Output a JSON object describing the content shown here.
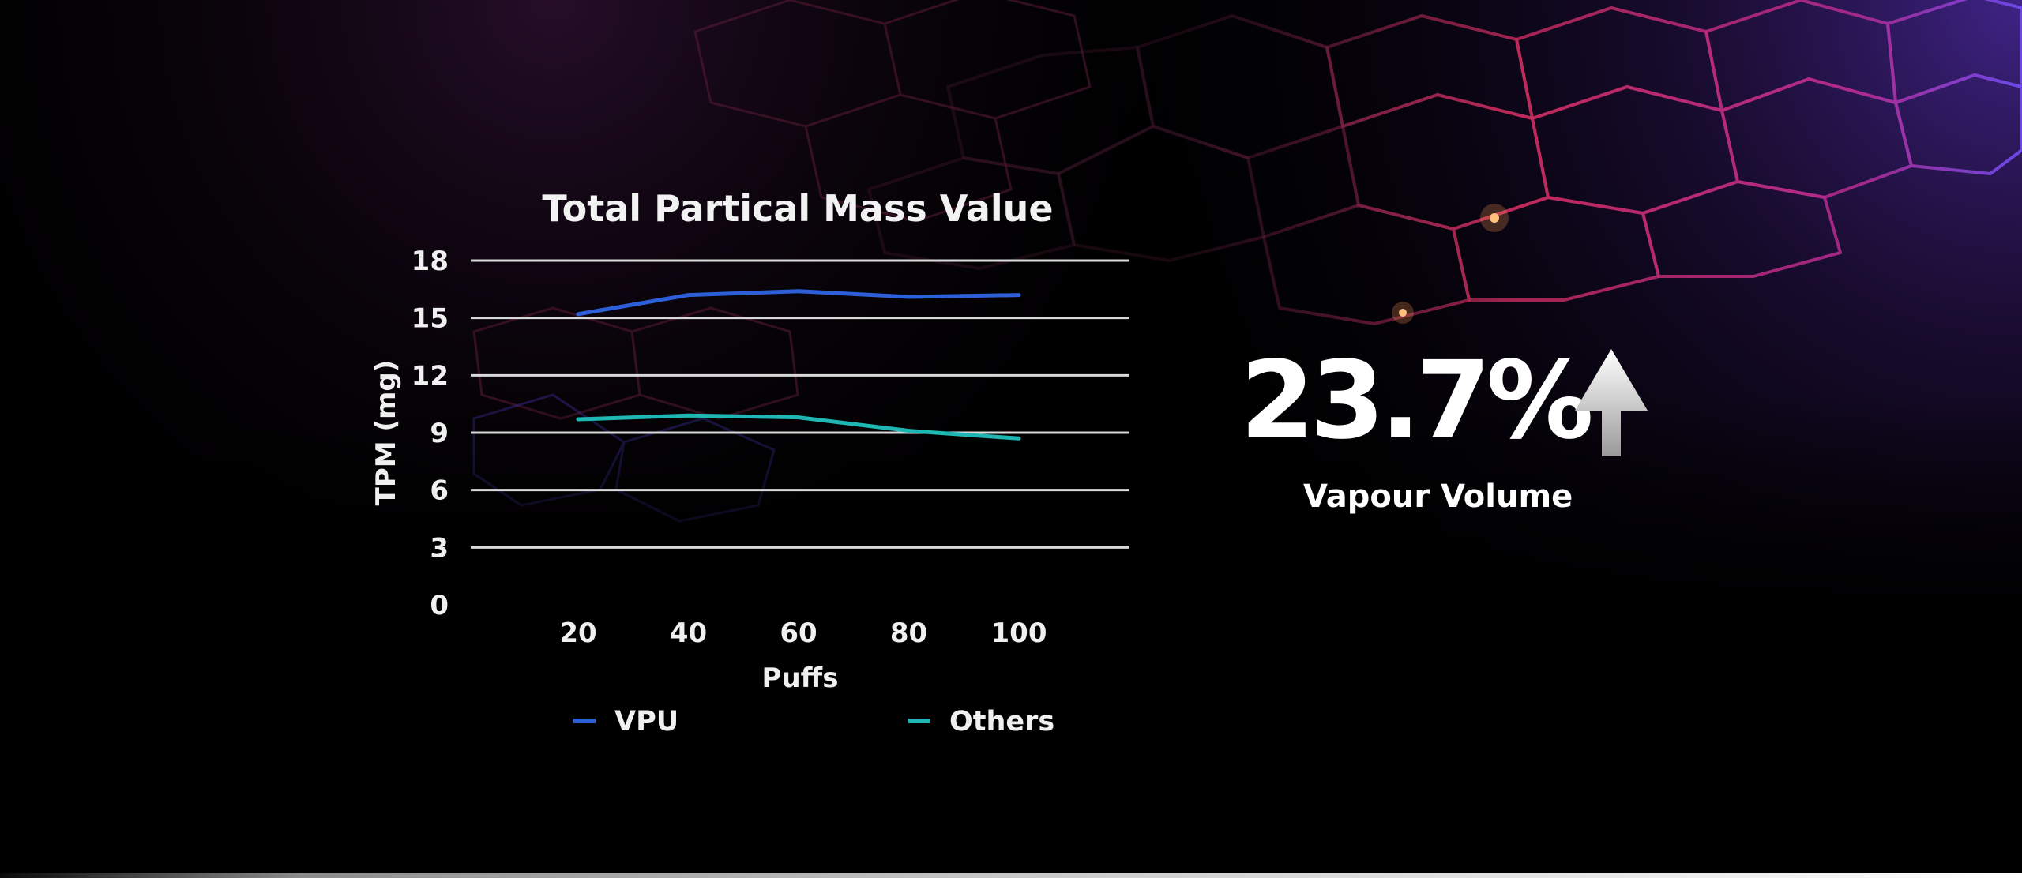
{
  "chart_data": {
    "type": "line",
    "title": "Total Partical Mass Value",
    "xlabel": "Puffs",
    "ylabel": "TPM (mg)",
    "x": [
      20,
      40,
      60,
      80,
      100
    ],
    "yticks": [
      0,
      3,
      6,
      9,
      12,
      15,
      18
    ],
    "ylim": [
      0,
      18
    ],
    "grid": true,
    "legend_position": "bottom",
    "series": [
      {
        "name": "VPU",
        "color": "#2d5fd8",
        "values": [
          15.2,
          16.2,
          16.4,
          16.1,
          16.2
        ]
      },
      {
        "name": "Others",
        "color": "#1eb7b4",
        "values": [
          9.7,
          9.9,
          9.8,
          9.1,
          8.7
        ]
      }
    ]
  },
  "highlight": {
    "value": "23.7%",
    "caption": "Vapour Volume",
    "icon": "arrow-up-icon"
  },
  "colors": {
    "background": "#000000",
    "accent_pink": "#e0336a",
    "accent_purple": "#6b3bd8",
    "grid": "#d9d9d9"
  }
}
